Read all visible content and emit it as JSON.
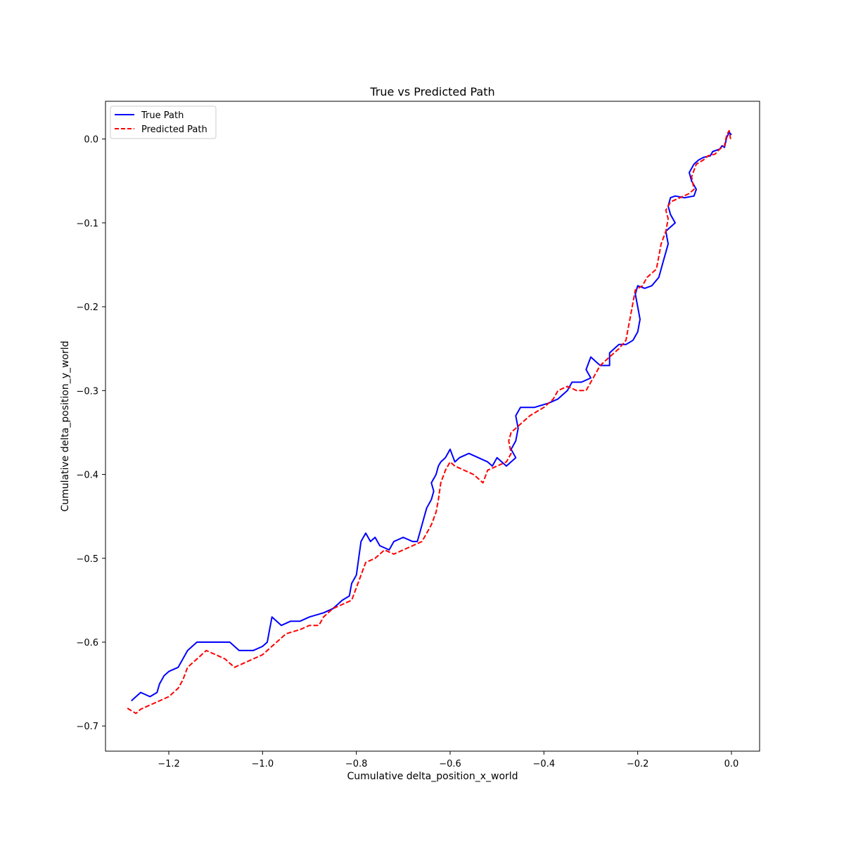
{
  "chart_data": {
    "type": "line",
    "title": "True vs Predicted Path",
    "xlabel": "Cumulative delta_position_x_world",
    "ylabel": "Cumulative delta_position_y_world",
    "xlim": [
      -1.335,
      0.06
    ],
    "ylim": [
      -0.73,
      0.045
    ],
    "xticks": [
      -1.2,
      -1.0,
      -0.8,
      -0.6,
      -0.4,
      -0.2,
      0.0
    ],
    "xtick_labels": [
      "−1.2",
      "−1.0",
      "−0.8",
      "−0.6",
      "−0.4",
      "−0.2",
      "0.0"
    ],
    "yticks": [
      0.0,
      -0.1,
      -0.2,
      -0.3,
      -0.4,
      -0.5,
      -0.6,
      -0.7
    ],
    "ytick_labels": [
      "0.0",
      "−0.1",
      "−0.2",
      "−0.3",
      "−0.4",
      "−0.5",
      "−0.6",
      "−0.7"
    ],
    "grid": false,
    "legend_position": "top-left",
    "series": [
      {
        "name": "True Path",
        "color": "#0000ff",
        "style": "solid",
        "points": [
          [
            0.0,
            0.005
          ],
          [
            -0.005,
            0.008
          ],
          [
            -0.01,
            0.002
          ],
          [
            -0.015,
            -0.01
          ],
          [
            -0.02,
            -0.008
          ],
          [
            -0.025,
            -0.012
          ],
          [
            -0.04,
            -0.015
          ],
          [
            -0.045,
            -0.02
          ],
          [
            -0.06,
            -0.022
          ],
          [
            -0.07,
            -0.025
          ],
          [
            -0.08,
            -0.03
          ],
          [
            -0.09,
            -0.04
          ],
          [
            -0.085,
            -0.05
          ],
          [
            -0.075,
            -0.06
          ],
          [
            -0.08,
            -0.068
          ],
          [
            -0.1,
            -0.07
          ],
          [
            -0.12,
            -0.068
          ],
          [
            -0.13,
            -0.07
          ],
          [
            -0.135,
            -0.08
          ],
          [
            -0.13,
            -0.09
          ],
          [
            -0.12,
            -0.1
          ],
          [
            -0.13,
            -0.105
          ],
          [
            -0.14,
            -0.11
          ],
          [
            -0.135,
            -0.125
          ],
          [
            -0.14,
            -0.135
          ],
          [
            -0.145,
            -0.145
          ],
          [
            -0.15,
            -0.155
          ],
          [
            -0.155,
            -0.165
          ],
          [
            -0.17,
            -0.175
          ],
          [
            -0.185,
            -0.178
          ],
          [
            -0.2,
            -0.175
          ],
          [
            -0.205,
            -0.185
          ],
          [
            -0.2,
            -0.2
          ],
          [
            -0.195,
            -0.215
          ],
          [
            -0.2,
            -0.23
          ],
          [
            -0.21,
            -0.24
          ],
          [
            -0.225,
            -0.245
          ],
          [
            -0.24,
            -0.245
          ],
          [
            -0.25,
            -0.25
          ],
          [
            -0.26,
            -0.255
          ],
          [
            -0.26,
            -0.27
          ],
          [
            -0.28,
            -0.27
          ],
          [
            -0.3,
            -0.26
          ],
          [
            -0.31,
            -0.275
          ],
          [
            -0.3,
            -0.285
          ],
          [
            -0.32,
            -0.29
          ],
          [
            -0.34,
            -0.29
          ],
          [
            -0.35,
            -0.3
          ],
          [
            -0.37,
            -0.31
          ],
          [
            -0.39,
            -0.315
          ],
          [
            -0.42,
            -0.32
          ],
          [
            -0.45,
            -0.32
          ],
          [
            -0.46,
            -0.33
          ],
          [
            -0.455,
            -0.345
          ],
          [
            -0.46,
            -0.36
          ],
          [
            -0.47,
            -0.37
          ],
          [
            -0.46,
            -0.38
          ],
          [
            -0.48,
            -0.39
          ],
          [
            -0.5,
            -0.38
          ],
          [
            -0.51,
            -0.39
          ],
          [
            -0.52,
            -0.385
          ],
          [
            -0.54,
            -0.38
          ],
          [
            -0.56,
            -0.375
          ],
          [
            -0.58,
            -0.38
          ],
          [
            -0.59,
            -0.385
          ],
          [
            -0.6,
            -0.37
          ],
          [
            -0.61,
            -0.38
          ],
          [
            -0.62,
            -0.385
          ],
          [
            -0.625,
            -0.39
          ],
          [
            -0.63,
            -0.4
          ],
          [
            -0.64,
            -0.41
          ],
          [
            -0.635,
            -0.42
          ],
          [
            -0.64,
            -0.43
          ],
          [
            -0.65,
            -0.44
          ],
          [
            -0.655,
            -0.45
          ],
          [
            -0.66,
            -0.46
          ],
          [
            -0.665,
            -0.47
          ],
          [
            -0.67,
            -0.48
          ],
          [
            -0.68,
            -0.48
          ],
          [
            -0.7,
            -0.475
          ],
          [
            -0.72,
            -0.48
          ],
          [
            -0.73,
            -0.49
          ],
          [
            -0.75,
            -0.485
          ],
          [
            -0.76,
            -0.475
          ],
          [
            -0.77,
            -0.48
          ],
          [
            -0.78,
            -0.47
          ],
          [
            -0.79,
            -0.48
          ],
          [
            -0.795,
            -0.5
          ],
          [
            -0.8,
            -0.52
          ],
          [
            -0.81,
            -0.53
          ],
          [
            -0.815,
            -0.545
          ],
          [
            -0.83,
            -0.55
          ],
          [
            -0.84,
            -0.555
          ],
          [
            -0.85,
            -0.56
          ],
          [
            -0.87,
            -0.565
          ],
          [
            -0.9,
            -0.57
          ],
          [
            -0.92,
            -0.575
          ],
          [
            -0.94,
            -0.575
          ],
          [
            -0.96,
            -0.58
          ],
          [
            -0.98,
            -0.57
          ],
          [
            -0.985,
            -0.585
          ],
          [
            -0.99,
            -0.6
          ],
          [
            -1.0,
            -0.605
          ],
          [
            -1.02,
            -0.61
          ],
          [
            -1.05,
            -0.61
          ],
          [
            -1.07,
            -0.6
          ],
          [
            -1.1,
            -0.6
          ],
          [
            -1.12,
            -0.6
          ],
          [
            -1.14,
            -0.6
          ],
          [
            -1.16,
            -0.61
          ],
          [
            -1.17,
            -0.62
          ],
          [
            -1.18,
            -0.63
          ],
          [
            -1.2,
            -0.635
          ],
          [
            -1.21,
            -0.64
          ],
          [
            -1.22,
            -0.65
          ],
          [
            -1.225,
            -0.66
          ],
          [
            -1.24,
            -0.665
          ],
          [
            -1.26,
            -0.66
          ],
          [
            -1.27,
            -0.665
          ],
          [
            -1.28,
            -0.67
          ]
        ]
      },
      {
        "name": "Predicted Path",
        "color": "#ff0000",
        "style": "dashed",
        "points": [
          [
            -0.002,
            0.0
          ],
          [
            -0.005,
            0.01
          ],
          [
            -0.01,
            0.005
          ],
          [
            -0.015,
            -0.008
          ],
          [
            -0.025,
            -0.012
          ],
          [
            -0.035,
            -0.018
          ],
          [
            -0.05,
            -0.02
          ],
          [
            -0.06,
            -0.025
          ],
          [
            -0.075,
            -0.03
          ],
          [
            -0.085,
            -0.045
          ],
          [
            -0.08,
            -0.06
          ],
          [
            -0.09,
            -0.065
          ],
          [
            -0.11,
            -0.07
          ],
          [
            -0.13,
            -0.075
          ],
          [
            -0.14,
            -0.085
          ],
          [
            -0.135,
            -0.095
          ],
          [
            -0.14,
            -0.11
          ],
          [
            -0.15,
            -0.125
          ],
          [
            -0.155,
            -0.14
          ],
          [
            -0.16,
            -0.155
          ],
          [
            -0.17,
            -0.16
          ],
          [
            -0.18,
            -0.165
          ],
          [
            -0.19,
            -0.175
          ],
          [
            -0.205,
            -0.18
          ],
          [
            -0.21,
            -0.195
          ],
          [
            -0.215,
            -0.21
          ],
          [
            -0.22,
            -0.225
          ],
          [
            -0.225,
            -0.24
          ],
          [
            -0.24,
            -0.25
          ],
          [
            -0.26,
            -0.26
          ],
          [
            -0.28,
            -0.27
          ],
          [
            -0.29,
            -0.28
          ],
          [
            -0.3,
            -0.29
          ],
          [
            -0.31,
            -0.3
          ],
          [
            -0.33,
            -0.3
          ],
          [
            -0.35,
            -0.295
          ],
          [
            -0.37,
            -0.3
          ],
          [
            -0.38,
            -0.31
          ],
          [
            -0.4,
            -0.32
          ],
          [
            -0.43,
            -0.33
          ],
          [
            -0.45,
            -0.34
          ],
          [
            -0.47,
            -0.35
          ],
          [
            -0.475,
            -0.36
          ],
          [
            -0.47,
            -0.375
          ],
          [
            -0.48,
            -0.385
          ],
          [
            -0.5,
            -0.39
          ],
          [
            -0.52,
            -0.395
          ],
          [
            -0.53,
            -0.41
          ],
          [
            -0.55,
            -0.4
          ],
          [
            -0.57,
            -0.395
          ],
          [
            -0.59,
            -0.39
          ],
          [
            -0.6,
            -0.385
          ],
          [
            -0.61,
            -0.395
          ],
          [
            -0.62,
            -0.41
          ],
          [
            -0.625,
            -0.43
          ],
          [
            -0.63,
            -0.445
          ],
          [
            -0.64,
            -0.46
          ],
          [
            -0.65,
            -0.47
          ],
          [
            -0.66,
            -0.48
          ],
          [
            -0.68,
            -0.485
          ],
          [
            -0.7,
            -0.49
          ],
          [
            -0.72,
            -0.495
          ],
          [
            -0.74,
            -0.49
          ],
          [
            -0.76,
            -0.5
          ],
          [
            -0.78,
            -0.505
          ],
          [
            -0.79,
            -0.52
          ],
          [
            -0.8,
            -0.535
          ],
          [
            -0.81,
            -0.55
          ],
          [
            -0.83,
            -0.555
          ],
          [
            -0.85,
            -0.56
          ],
          [
            -0.87,
            -0.57
          ],
          [
            -0.88,
            -0.58
          ],
          [
            -0.9,
            -0.58
          ],
          [
            -0.92,
            -0.585
          ],
          [
            -0.95,
            -0.59
          ],
          [
            -0.97,
            -0.6
          ],
          [
            -0.99,
            -0.61
          ],
          [
            -1.0,
            -0.615
          ],
          [
            -1.02,
            -0.62
          ],
          [
            -1.04,
            -0.625
          ],
          [
            -1.06,
            -0.63
          ],
          [
            -1.08,
            -0.62
          ],
          [
            -1.1,
            -0.615
          ],
          [
            -1.12,
            -0.61
          ],
          [
            -1.14,
            -0.62
          ],
          [
            -1.16,
            -0.63
          ],
          [
            -1.17,
            -0.645
          ],
          [
            -1.18,
            -0.655
          ],
          [
            -1.2,
            -0.665
          ],
          [
            -1.22,
            -0.67
          ],
          [
            -1.24,
            -0.675
          ],
          [
            -1.26,
            -0.68
          ],
          [
            -1.27,
            -0.685
          ],
          [
            -1.285,
            -0.68
          ],
          [
            -1.29,
            -0.678
          ]
        ]
      }
    ]
  }
}
